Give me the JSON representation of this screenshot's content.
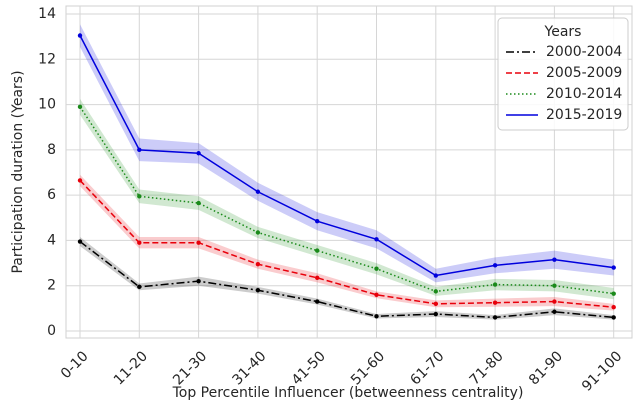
{
  "chart_data": {
    "type": "line",
    "x_label": "Top Percentile Influencer (betweenness centrality)",
    "y_label": "Participation duration (Years)",
    "categories": [
      "0-10",
      "11-20",
      "21-30",
      "31-40",
      "41-50",
      "51-60",
      "61-70",
      "71-80",
      "81-90",
      "91-100"
    ],
    "ylim": [
      0,
      14
    ],
    "yticks": [
      0,
      2,
      4,
      6,
      8,
      10,
      12,
      14
    ],
    "grid": true,
    "legend_title": "Years",
    "legend_position": "upper right",
    "series": [
      {
        "name": "2000-2004",
        "color": "#000000",
        "dash": "dashdot",
        "values": [
          3.95,
          1.95,
          2.2,
          1.8,
          1.3,
          0.65,
          0.75,
          0.6,
          0.85,
          0.6
        ],
        "lower": [
          3.75,
          1.8,
          2.0,
          1.65,
          1.17,
          0.55,
          0.62,
          0.5,
          0.7,
          0.5
        ],
        "upper": [
          4.15,
          2.1,
          2.4,
          1.95,
          1.43,
          0.75,
          0.88,
          0.7,
          1.0,
          0.7
        ]
      },
      {
        "name": "2005-2009",
        "color": "#e8000b",
        "dash": "dashed",
        "values": [
          6.65,
          3.9,
          3.9,
          2.95,
          2.35,
          1.6,
          1.2,
          1.25,
          1.3,
          1.05
        ],
        "lower": [
          6.4,
          3.65,
          3.65,
          2.75,
          2.15,
          1.45,
          1.05,
          1.07,
          1.1,
          0.9
        ],
        "upper": [
          6.9,
          4.15,
          4.15,
          3.15,
          2.55,
          1.75,
          1.35,
          1.43,
          1.5,
          1.2
        ]
      },
      {
        "name": "2010-2014",
        "color": "#1a8a1a",
        "dash": "dotted",
        "values": [
          9.9,
          5.95,
          5.65,
          4.35,
          3.55,
          2.75,
          1.75,
          2.05,
          2.0,
          1.65
        ],
        "lower": [
          9.55,
          5.65,
          5.35,
          4.1,
          3.3,
          2.5,
          1.55,
          1.8,
          1.75,
          1.4
        ],
        "upper": [
          10.25,
          6.25,
          5.95,
          4.6,
          3.8,
          3.0,
          1.95,
          2.3,
          2.25,
          1.9
        ]
      },
      {
        "name": "2015-2019",
        "color": "#0000dd",
        "dash": "solid",
        "values": [
          13.05,
          8.0,
          7.85,
          6.15,
          4.85,
          4.05,
          2.45,
          2.9,
          3.15,
          2.8
        ],
        "lower": [
          12.55,
          7.5,
          7.4,
          5.75,
          4.45,
          3.65,
          2.15,
          2.55,
          2.75,
          2.45
        ],
        "upper": [
          13.55,
          8.5,
          8.3,
          6.55,
          5.25,
          4.45,
          2.75,
          3.25,
          3.55,
          3.15
        ]
      }
    ]
  }
}
